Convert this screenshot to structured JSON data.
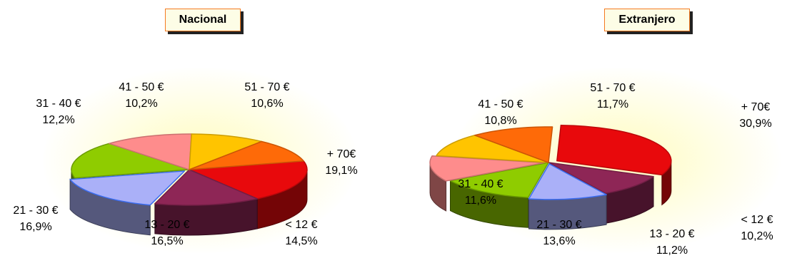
{
  "chart_data": [
    {
      "type": "pie",
      "title": "Nacional",
      "slices": [
        {
          "label": "+ 70€",
          "value": 19.1,
          "display": "19,1%",
          "color": "#e8090c"
        },
        {
          "label": "< 12 €",
          "value": 14.5,
          "display": "14,5%",
          "color": "#8e2656"
        },
        {
          "label": "13 - 20 €",
          "value": 16.5,
          "display": "16,5%",
          "color": "#aab0f8"
        },
        {
          "label": "21 - 30 €",
          "value": 16.9,
          "display": "16,9%",
          "color": "#8fcc00"
        },
        {
          "label": "31 - 40 €",
          "value": 12.2,
          "display": "12,2%",
          "color": "#fe8c8c"
        },
        {
          "label": "41 - 50 €",
          "value": 10.2,
          "display": "10,2%",
          "color": "#ffc400"
        },
        {
          "label": "51 - 70 €",
          "value": 10.6,
          "display": "10,6%",
          "color": "#fe6a08"
        }
      ]
    },
    {
      "type": "pie",
      "title": "Extranjero",
      "slices": [
        {
          "label": "+ 70€",
          "value": 30.9,
          "display": "30,9%",
          "color": "#e8090c"
        },
        {
          "label": "< 12 €",
          "value": 10.2,
          "display": "10,2%",
          "color": "#8e2656"
        },
        {
          "label": "13 - 20 €",
          "value": 11.2,
          "display": "11,2%",
          "color": "#aab0f8"
        },
        {
          "label": "21 - 30 €",
          "value": 13.6,
          "display": "13,6%",
          "color": "#8fcc00"
        },
        {
          "label": "31 - 40 €",
          "value": 11.6,
          "display": "11,6%",
          "color": "#fe8c8c"
        },
        {
          "label": "41 - 50 €",
          "value": 10.8,
          "display": "10,8%",
          "color": "#ffc400"
        },
        {
          "label": "51 - 70 €",
          "value": 11.7,
          "display": "11,7%",
          "color": "#fe6a08"
        }
      ]
    }
  ]
}
